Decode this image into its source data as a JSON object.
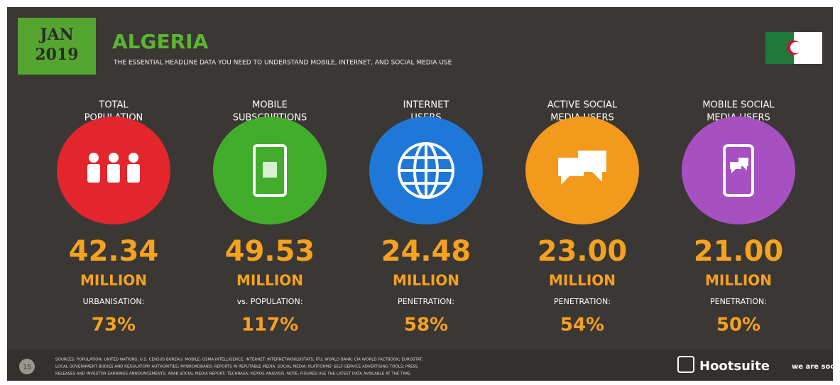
{
  "header": {
    "badge_month": "JAN",
    "badge_year": "2019",
    "title": "ALGERIA",
    "subtitle": "THE ESSENTIAL HEADLINE DATA YOU NEED TO UNDERSTAND MOBILE, INTERNET, AND SOCIAL MEDIA USE"
  },
  "stats": [
    {
      "label_1": "TOTAL",
      "label_2": "POPULATION",
      "value": "42.34",
      "unit": "MILLION",
      "sub_label": "URBANISATION:",
      "sub_value": "73%"
    },
    {
      "label_1": "MOBILE",
      "label_2": "SUBSCRIPTIONS",
      "value": "49.53",
      "unit": "MILLION",
      "sub_label": "vs. POPULATION:",
      "sub_value": "117%"
    },
    {
      "label_1": "INTERNET",
      "label_2": "USERS",
      "value": "24.48",
      "unit": "MILLION",
      "sub_label": "PENETRATION:",
      "sub_value": "58%"
    },
    {
      "label_1": "ACTIVE SOCIAL",
      "label_2": "MEDIA USERS",
      "value": "23.00",
      "unit": "MILLION",
      "sub_label": "PENETRATION:",
      "sub_value": "54%"
    },
    {
      "label_1": "MOBILE SOCIAL",
      "label_2": "MEDIA USERS",
      "value": "21.00",
      "unit": "MILLION",
      "sub_label": "PENETRATION:",
      "sub_value": "50%"
    }
  ],
  "footer": {
    "page": "15",
    "sources_1": "SOURCES: POPULATION: UNITED NATIONS; U.S. CENSUS BUREAU. MOBILE: GSMA INTELLIGENCE. INTERNET: INTERNETWORLDSTATS; ITU; WORLD BANK; CIA WORLD FACTBOOK; EUROSTAT;",
    "sources_2": "LOCAL GOVERNMENT BODIES AND REGULATORY AUTHORITIES; MYBROADBAND; REPORTS IN REPUTABLE MEDIA. SOCIAL MEDIA: PLATFORMS' SELF-SERVICE ADVERTISING TOOLS; PRESS",
    "sources_3": "RELEASES AND INVESTOR EARNINGS ANNOUNCEMENTS; ARAB SOCIAL MEDIA REPORT; TECHRASA; KEPIOS ANALYSIS. NOTE: FIGURES USE THE LATEST DATA AVAILABLE AT THE TIME.",
    "brand_1": "Hootsuite",
    "brand_2": "we are social"
  }
}
